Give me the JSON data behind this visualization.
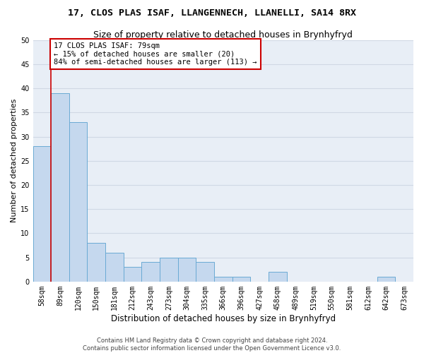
{
  "title": "17, CLOS PLAS ISAF, LLANGENNECH, LLANELLI, SA14 8RX",
  "subtitle": "Size of property relative to detached houses in Brynhyfryd",
  "xlabel": "Distribution of detached houses by size in Brynhyfryd",
  "ylabel": "Number of detached properties",
  "categories": [
    "58sqm",
    "89sqm",
    "120sqm",
    "150sqm",
    "181sqm",
    "212sqm",
    "243sqm",
    "273sqm",
    "304sqm",
    "335sqm",
    "366sqm",
    "396sqm",
    "427sqm",
    "458sqm",
    "489sqm",
    "519sqm",
    "550sqm",
    "581sqm",
    "612sqm",
    "642sqm",
    "673sqm"
  ],
  "values": [
    28,
    39,
    33,
    8,
    6,
    3,
    4,
    5,
    5,
    4,
    1,
    1,
    0,
    2,
    0,
    0,
    0,
    0,
    0,
    1,
    0
  ],
  "bar_color": "#c5d8ee",
  "bar_edge_color": "#6aaad4",
  "annotation_text_line1": "17 CLOS PLAS ISAF: 79sqm",
  "annotation_text_line2": "← 15% of detached houses are smaller (20)",
  "annotation_text_line3": "84% of semi-detached houses are larger (113) →",
  "annotation_box_color": "#ffffff",
  "annotation_box_edge_color": "#cc0000",
  "vline_color": "#cc0000",
  "ylim": [
    0,
    50
  ],
  "yticks": [
    0,
    5,
    10,
    15,
    20,
    25,
    30,
    35,
    40,
    45,
    50
  ],
  "grid_color": "#d0d8e4",
  "bg_color": "#e8eef6",
  "footer_line1": "Contains HM Land Registry data © Crown copyright and database right 2024.",
  "footer_line2": "Contains public sector information licensed under the Open Government Licence v3.0.",
  "title_fontsize": 9.5,
  "subtitle_fontsize": 9,
  "xlabel_fontsize": 8.5,
  "ylabel_fontsize": 8,
  "tick_fontsize": 7,
  "annotation_fontsize": 7.5,
  "footer_fontsize": 6
}
